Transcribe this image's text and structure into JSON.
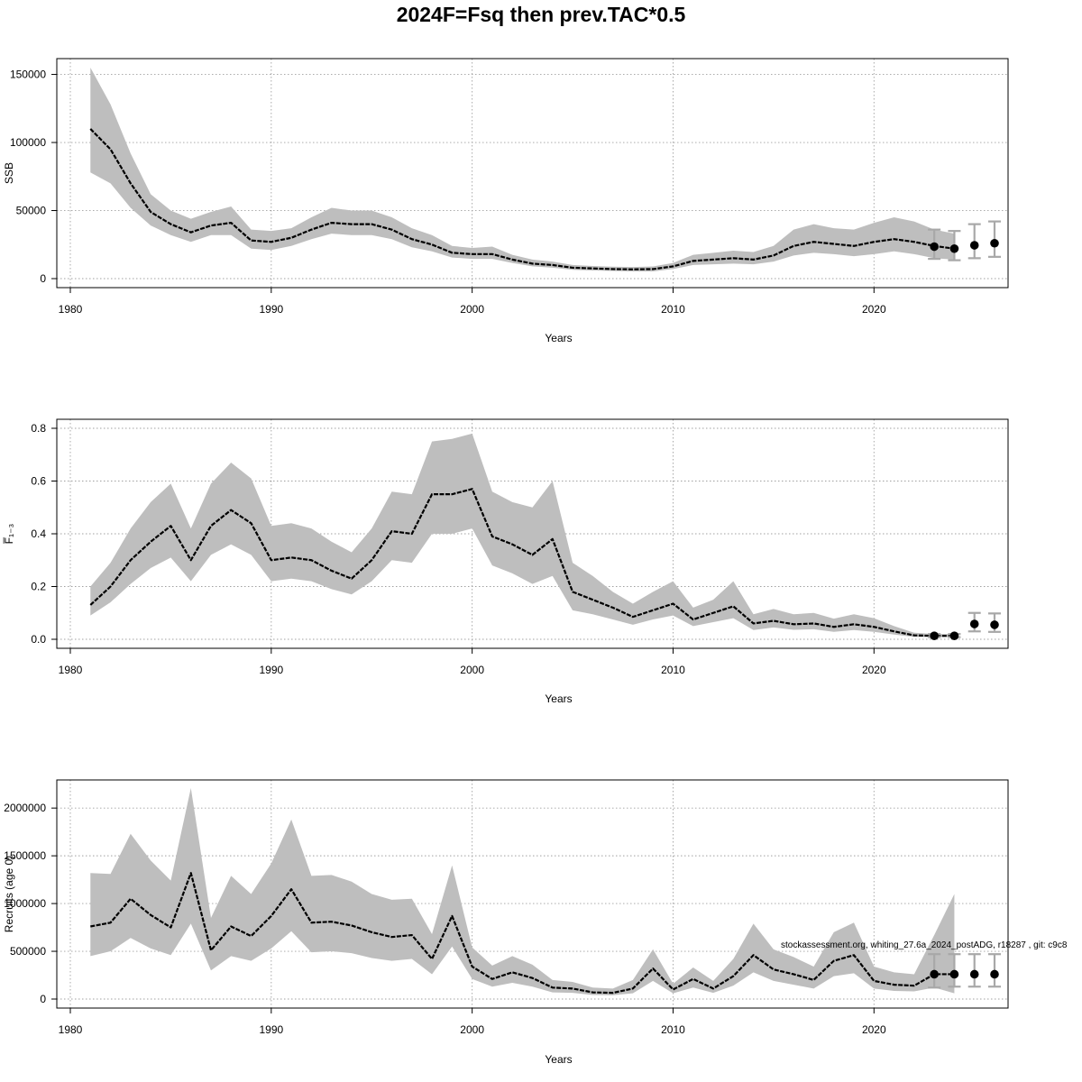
{
  "figure": {
    "title": "2024F=Fsq then prev.TAC*0.5",
    "annotation": "stockassessment.org, whiting_27.6a_2024_postADG, r18287 , git: c9c8"
  },
  "colors": {
    "band": "#bebebe",
    "line": "#000000",
    "grid": "#a0a0a0",
    "errorbar": "#a8a8a8"
  },
  "chart_data": [
    {
      "type": "line",
      "name": "SSB",
      "title": "",
      "xlabel": "Years",
      "ylabel": "SSB",
      "xlim": [
        1980,
        2026
      ],
      "ylim": [
        0,
        155000
      ],
      "xticks": [
        1980,
        1990,
        2000,
        2010,
        2020
      ],
      "yticks": [
        0,
        50000,
        100000,
        150000
      ],
      "ytick_labels": [
        "0",
        "50000",
        "100000",
        "150000"
      ],
      "x": [
        1981,
        1982,
        1983,
        1984,
        1985,
        1986,
        1987,
        1988,
        1989,
        1990,
        1991,
        1992,
        1993,
        1994,
        1995,
        1996,
        1997,
        1998,
        1999,
        2000,
        2001,
        2002,
        2003,
        2004,
        2005,
        2006,
        2007,
        2008,
        2009,
        2010,
        2011,
        2012,
        2013,
        2014,
        2015,
        2016,
        2017,
        2018,
        2019,
        2020,
        2021,
        2022,
        2023,
        2024
      ],
      "estimate": [
        110000,
        95000,
        70000,
        49000,
        40000,
        34000,
        39000,
        41000,
        28000,
        27000,
        30000,
        36000,
        41000,
        40000,
        40000,
        36000,
        29000,
        25000,
        19000,
        18000,
        18000,
        14000,
        11000,
        10000,
        8000,
        7500,
        7000,
        6800,
        7000,
        9000,
        13000,
        14000,
        15000,
        14000,
        17000,
        24000,
        27000,
        25500,
        24000,
        27000,
        29000,
        27000,
        24000,
        22000
      ],
      "lower": [
        78000,
        70000,
        52000,
        39000,
        32000,
        27000,
        32000,
        32000,
        22000,
        21000,
        24000,
        29000,
        33000,
        32000,
        32000,
        29000,
        23000,
        20000,
        15500,
        14500,
        14500,
        11500,
        9000,
        8000,
        6500,
        6000,
        5600,
        5300,
        5300,
        7000,
        10000,
        10500,
        11000,
        10500,
        12500,
        17000,
        19000,
        18000,
        16500,
        18000,
        20000,
        18000,
        15000,
        14000
      ],
      "upper": [
        155000,
        128000,
        92000,
        62000,
        50000,
        44000,
        49000,
        53000,
        36000,
        35000,
        37000,
        45000,
        52000,
        50000,
        50000,
        45000,
        37000,
        32000,
        24000,
        22500,
        23500,
        17500,
        14000,
        12500,
        10000,
        9300,
        8800,
        8500,
        8900,
        11500,
        17500,
        19000,
        20500,
        19500,
        24000,
        36000,
        40000,
        37000,
        36000,
        41000,
        45000,
        42000,
        36000,
        33000
      ],
      "forecast": {
        "x": [
          2023,
          2024,
          2025,
          2026
        ],
        "estimate": [
          23500,
          22000,
          24500,
          26000
        ],
        "lower": [
          14500,
          13500,
          15000,
          16000
        ],
        "upper": [
          36000,
          35000,
          40000,
          42000
        ]
      }
    },
    {
      "type": "line",
      "name": "Fbar",
      "title": "",
      "xlabel": "Years",
      "ylabel": "F̅₁₋₃",
      "xlim": [
        1980,
        2026
      ],
      "ylim": [
        0,
        0.8
      ],
      "xticks": [
        1980,
        1990,
        2000,
        2010,
        2020
      ],
      "yticks": [
        0.0,
        0.2,
        0.4,
        0.6,
        0.8
      ],
      "ytick_labels": [
        "0.0",
        "0.2",
        "0.4",
        "0.6",
        "0.8"
      ],
      "x": [
        1981,
        1982,
        1983,
        1984,
        1985,
        1986,
        1987,
        1988,
        1989,
        1990,
        1991,
        1992,
        1993,
        1994,
        1995,
        1996,
        1997,
        1998,
        1999,
        2000,
        2001,
        2002,
        2003,
        2004,
        2005,
        2006,
        2007,
        2008,
        2009,
        2010,
        2011,
        2012,
        2013,
        2014,
        2015,
        2016,
        2017,
        2018,
        2019,
        2020,
        2021,
        2022,
        2023,
        2024
      ],
      "estimate": [
        0.13,
        0.2,
        0.3,
        0.37,
        0.43,
        0.3,
        0.43,
        0.49,
        0.44,
        0.3,
        0.31,
        0.3,
        0.26,
        0.23,
        0.3,
        0.41,
        0.4,
        0.55,
        0.55,
        0.57,
        0.39,
        0.36,
        0.32,
        0.38,
        0.18,
        0.15,
        0.12,
        0.085,
        0.11,
        0.135,
        0.075,
        0.1,
        0.125,
        0.06,
        0.07,
        0.057,
        0.06,
        0.047,
        0.057,
        0.047,
        0.03,
        0.015,
        0.013,
        0.013
      ],
      "lower": [
        0.09,
        0.14,
        0.21,
        0.27,
        0.31,
        0.22,
        0.32,
        0.36,
        0.32,
        0.22,
        0.23,
        0.22,
        0.19,
        0.17,
        0.22,
        0.3,
        0.29,
        0.4,
        0.4,
        0.42,
        0.28,
        0.25,
        0.21,
        0.24,
        0.11,
        0.095,
        0.075,
        0.055,
        0.075,
        0.09,
        0.05,
        0.065,
        0.08,
        0.035,
        0.045,
        0.036,
        0.038,
        0.028,
        0.035,
        0.028,
        0.018,
        0.009,
        0.008,
        0.008
      ],
      "upper": [
        0.2,
        0.29,
        0.42,
        0.52,
        0.59,
        0.42,
        0.59,
        0.67,
        0.61,
        0.43,
        0.44,
        0.42,
        0.37,
        0.33,
        0.42,
        0.56,
        0.55,
        0.75,
        0.76,
        0.78,
        0.56,
        0.52,
        0.5,
        0.6,
        0.29,
        0.24,
        0.18,
        0.135,
        0.18,
        0.22,
        0.12,
        0.15,
        0.22,
        0.095,
        0.115,
        0.095,
        0.1,
        0.078,
        0.095,
        0.08,
        0.05,
        0.025,
        0.02,
        0.02
      ],
      "forecast": {
        "x": [
          2023,
          2024,
          2025,
          2026
        ],
        "estimate": [
          0.013,
          0.013,
          0.058,
          0.055
        ],
        "lower": [
          0.008,
          0.008,
          0.03,
          0.028
        ],
        "upper": [
          0.02,
          0.02,
          0.1,
          0.098
        ]
      }
    },
    {
      "type": "line",
      "name": "Recruits",
      "title": "",
      "xlabel": "Years",
      "ylabel": "Recruits (age 0)",
      "xlim": [
        1980,
        2026
      ],
      "ylim": [
        0,
        2200000
      ],
      "xticks": [
        1980,
        1990,
        2000,
        2010,
        2020
      ],
      "yticks": [
        0,
        500000,
        1000000,
        1500000,
        2000000
      ],
      "ytick_labels": [
        "0",
        "500000",
        "1000000",
        "1500000",
        "2000000"
      ],
      "x": [
        1981,
        1982,
        1983,
        1984,
        1985,
        1986,
        1987,
        1988,
        1989,
        1990,
        1991,
        1992,
        1993,
        1994,
        1995,
        1996,
        1997,
        1998,
        1999,
        2000,
        2001,
        2002,
        2003,
        2004,
        2005,
        2006,
        2007,
        2008,
        2009,
        2010,
        2011,
        2012,
        2013,
        2014,
        2015,
        2016,
        2017,
        2018,
        2019,
        2020,
        2021,
        2022,
        2023,
        2024
      ],
      "estimate": [
        760000,
        800000,
        1050000,
        880000,
        750000,
        1320000,
        510000,
        760000,
        660000,
        870000,
        1150000,
        800000,
        810000,
        770000,
        700000,
        650000,
        670000,
        420000,
        870000,
        340000,
        210000,
        280000,
        220000,
        120000,
        110000,
        70000,
        65000,
        110000,
        320000,
        100000,
        210000,
        110000,
        240000,
        460000,
        310000,
        260000,
        200000,
        400000,
        460000,
        190000,
        150000,
        140000,
        260000,
        260000
      ],
      "lower": [
        450000,
        500000,
        640000,
        530000,
        460000,
        790000,
        300000,
        450000,
        400000,
        530000,
        710000,
        490000,
        500000,
        480000,
        430000,
        400000,
        420000,
        260000,
        550000,
        210000,
        130000,
        170000,
        130000,
        70000,
        65000,
        42000,
        40000,
        60000,
        190000,
        60000,
        120000,
        65000,
        140000,
        280000,
        190000,
        150000,
        110000,
        240000,
        270000,
        110000,
        85000,
        80000,
        120000,
        60000
      ],
      "upper": [
        1320000,
        1310000,
        1730000,
        1450000,
        1240000,
        2210000,
        850000,
        1290000,
        1100000,
        1420000,
        1880000,
        1290000,
        1300000,
        1230000,
        1100000,
        1040000,
        1050000,
        680000,
        1400000,
        540000,
        350000,
        450000,
        360000,
        200000,
        180000,
        120000,
        110000,
        200000,
        520000,
        160000,
        330000,
        190000,
        420000,
        790000,
        520000,
        440000,
        340000,
        700000,
        800000,
        340000,
        280000,
        260000,
        670000,
        1100000
      ],
      "forecast": {
        "x": [
          2023,
          2024,
          2025,
          2026
        ],
        "estimate": [
          260000,
          260000,
          260000,
          260000
        ],
        "lower": [
          120000,
          130000,
          130000,
          130000
        ],
        "upper": [
          470000,
          470000,
          470000,
          470000
        ]
      }
    }
  ]
}
